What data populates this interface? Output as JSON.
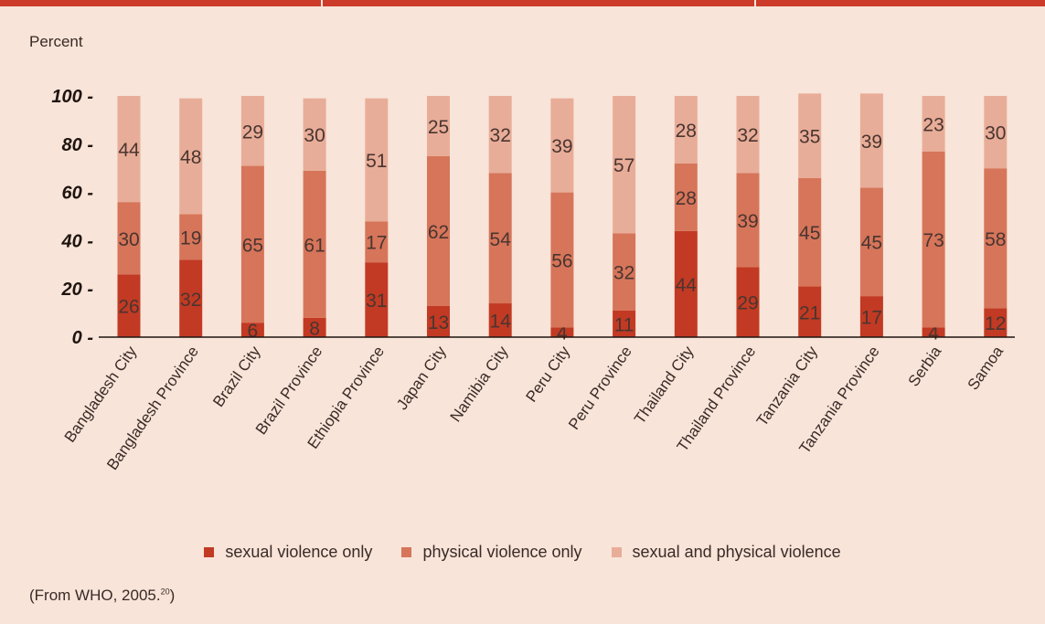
{
  "header": {
    "unit_label": "Percent"
  },
  "chart_data": {
    "type": "bar",
    "stacked": true,
    "categories": [
      "Bangladesh City",
      "Bangladesh Province",
      "Brazil City",
      "Brazil Province",
      "Ethiopia Province",
      "Japan City",
      "Namibia City",
      "Peru City",
      "Peru Province",
      "Thailand City",
      "Thailand Province",
      "Tanzania City",
      "Tanzania Province",
      "Serbia",
      "Samoa"
    ],
    "series": [
      {
        "name": "sexual violence only",
        "color": "#c23a23",
        "values": [
          26,
          32,
          6,
          8,
          31,
          13,
          14,
          4,
          11,
          44,
          29,
          21,
          17,
          4,
          12
        ]
      },
      {
        "name": "physical violence only",
        "color": "#d6755a",
        "values": [
          30,
          19,
          65,
          61,
          17,
          62,
          54,
          56,
          32,
          28,
          39,
          45,
          45,
          73,
          58
        ]
      },
      {
        "name": "sexual and physical violence",
        "color": "#e8ad98",
        "values": [
          44,
          48,
          29,
          30,
          51,
          25,
          32,
          39,
          57,
          28,
          32,
          35,
          39,
          23,
          30
        ]
      }
    ],
    "yticks": [
      "0 -",
      "20 -",
      "40 -",
      "60 -",
      "80 -",
      "100 -"
    ],
    "ylim": [
      0,
      100
    ],
    "legend_position": "bottom"
  },
  "source": {
    "text": "(From WHO, 2005.",
    "ref": "20",
    "close": ")"
  }
}
